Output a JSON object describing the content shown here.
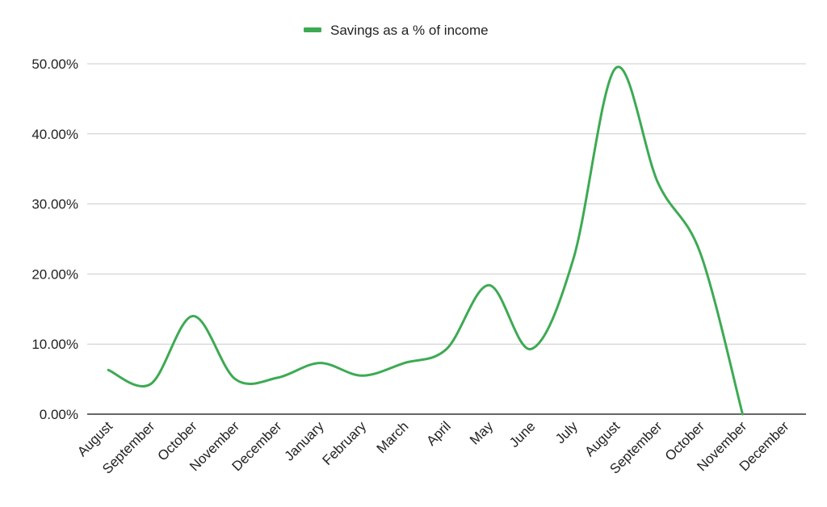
{
  "legend": {
    "label": "Savings as a % of income",
    "position": "top-center"
  },
  "chart_data": {
    "type": "line",
    "title": "",
    "xlabel": "",
    "ylabel": "",
    "smooth": true,
    "grid": true,
    "ylim": [
      0,
      0.5
    ],
    "y_ticks": [
      0,
      0.1,
      0.2,
      0.3,
      0.4,
      0.5
    ],
    "y_tick_labels": [
      "0.00%",
      "10.00%",
      "20.00%",
      "30.00%",
      "40.00%",
      "50.00%"
    ],
    "categories": [
      "August",
      "September",
      "October",
      "November",
      "December",
      "January",
      "February",
      "March",
      "April",
      "May",
      "June",
      "July",
      "August",
      "September",
      "October",
      "November",
      "December"
    ],
    "series": [
      {
        "name": "Savings as a % of income",
        "color": "#3daa53",
        "values": [
          0.063,
          0.043,
          0.14,
          0.05,
          0.052,
          0.073,
          0.055,
          0.073,
          0.093,
          0.184,
          0.093,
          0.222,
          0.494,
          0.33,
          0.23,
          0.0,
          null
        ]
      }
    ]
  }
}
